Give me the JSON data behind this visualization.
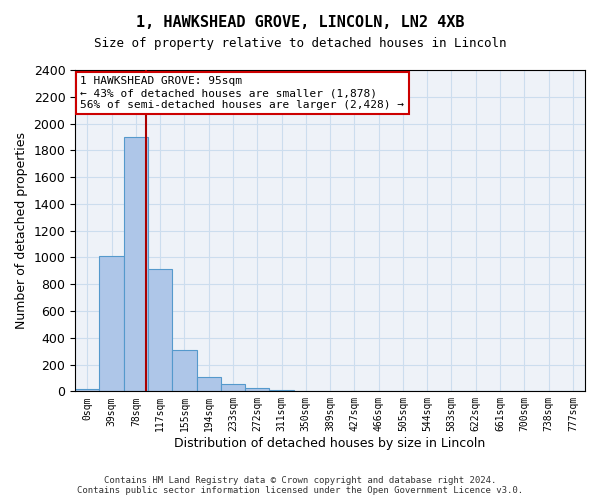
{
  "title_line1": "1, HAWKSHEAD GROVE, LINCOLN, LN2 4XB",
  "title_line2": "Size of property relative to detached houses in Lincoln",
  "xlabel": "Distribution of detached houses by size in Lincoln",
  "ylabel": "Number of detached properties",
  "bin_labels": [
    "0sqm",
    "39sqm",
    "78sqm",
    "117sqm",
    "155sqm",
    "194sqm",
    "233sqm",
    "272sqm",
    "311sqm",
    "350sqm",
    "389sqm",
    "427sqm",
    "466sqm",
    "505sqm",
    "544sqm",
    "583sqm",
    "622sqm",
    "661sqm",
    "700sqm",
    "738sqm",
    "777sqm"
  ],
  "bar_values": [
    15,
    1010,
    1900,
    910,
    310,
    105,
    55,
    25,
    10,
    3,
    1,
    0,
    0,
    0,
    0,
    0,
    0,
    0,
    0,
    0,
    0
  ],
  "bar_color": "#aec6e8",
  "bar_edge_color": "#5599cc",
  "vline_x": 2.43,
  "vline_color": "#aa0000",
  "annotation_text": "1 HAWKSHEAD GROVE: 95sqm\n← 43% of detached houses are smaller (1,878)\n56% of semi-detached houses are larger (2,428) →",
  "annotation_box_color": "white",
  "annotation_box_edge_color": "#cc0000",
  "ylim": [
    0,
    2400
  ],
  "yticks": [
    0,
    200,
    400,
    600,
    800,
    1000,
    1200,
    1400,
    1600,
    1800,
    2000,
    2200,
    2400
  ],
  "grid_color": "#ccddee",
  "footer_line1": "Contains HM Land Registry data © Crown copyright and database right 2024.",
  "footer_line2": "Contains public sector information licensed under the Open Government Licence v3.0.",
  "bg_color": "#eef2f8"
}
